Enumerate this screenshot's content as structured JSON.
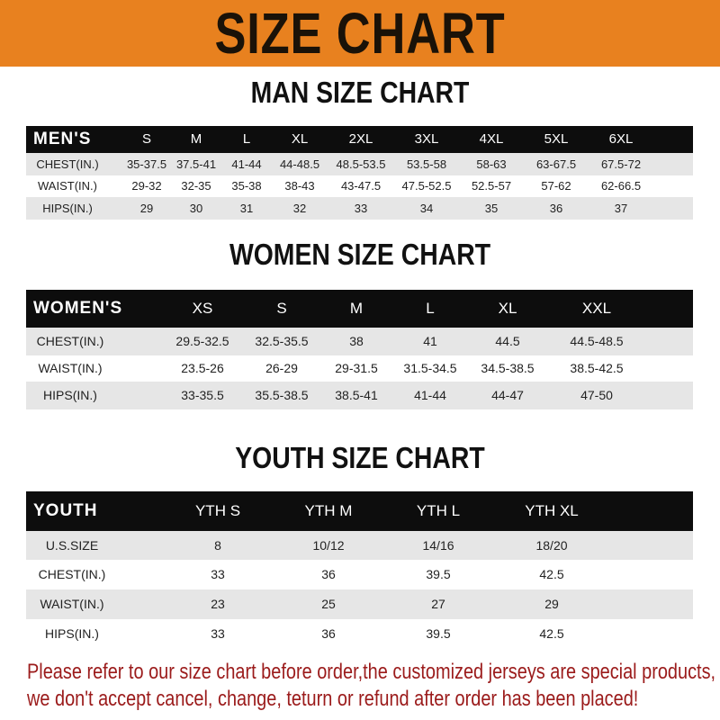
{
  "banner": {
    "title": "SIZE CHART",
    "color": "#e8811f"
  },
  "men": {
    "title": "MAN SIZE CHART",
    "header": [
      "MEN'S",
      "S",
      "M",
      "L",
      "XL",
      "2XL",
      "3XL",
      "4XL",
      "5XL",
      "6XL"
    ],
    "rows": [
      [
        "CHEST(IN.)",
        "35-37.5",
        "37.5-41",
        "41-44",
        "44-48.5",
        "48.5-53.5",
        "53.5-58",
        "58-63",
        "63-67.5",
        "67.5-72"
      ],
      [
        "WAIST(IN.)",
        "29-32",
        "32-35",
        "35-38",
        "38-43",
        "43-47.5",
        "47.5-52.5",
        "52.5-57",
        "57-62",
        "62-66.5"
      ],
      [
        "HIPS(IN.)",
        "29",
        "30",
        "31",
        "32",
        "33",
        "34",
        "35",
        "36",
        "37"
      ]
    ]
  },
  "women": {
    "title": "WOMEN SIZE CHART",
    "header": [
      "WOMEN'S",
      "XS",
      "S",
      "M",
      "L",
      "XL",
      "XXL"
    ],
    "rows": [
      [
        "CHEST(IN.)",
        "29.5-32.5",
        "32.5-35.5",
        "38",
        "41",
        "44.5",
        "44.5-48.5"
      ],
      [
        "WAIST(IN.)",
        "23.5-26",
        "26-29",
        "29-31.5",
        "31.5-34.5",
        "34.5-38.5",
        "38.5-42.5"
      ],
      [
        "HIPS(IN.)",
        "33-35.5",
        "35.5-38.5",
        "38.5-41",
        "41-44",
        "44-47",
        "47-50"
      ]
    ]
  },
  "youth": {
    "title": "YOUTH SIZE CHART",
    "header": [
      "YOUTH",
      "YTH S",
      "YTH M",
      "YTH L",
      "YTH XL"
    ],
    "rows": [
      [
        "U.S.SIZE",
        "8",
        "10/12",
        "14/16",
        "18/20"
      ],
      [
        "CHEST(IN.)",
        "33",
        "36",
        "39.5",
        "42.5"
      ],
      [
        "WAIST(IN.)",
        "23",
        "25",
        "27",
        "29"
      ],
      [
        "HIPS(IN.)",
        "33",
        "36",
        "39.5",
        "42.5"
      ]
    ]
  },
  "notice": {
    "line1": "Please refer to our size chart before order,the customized jerseys are special products,",
    "line2": "we don't accept cancel, change, teturn or refund after order has been placed!",
    "color": "#9b1b1b"
  }
}
